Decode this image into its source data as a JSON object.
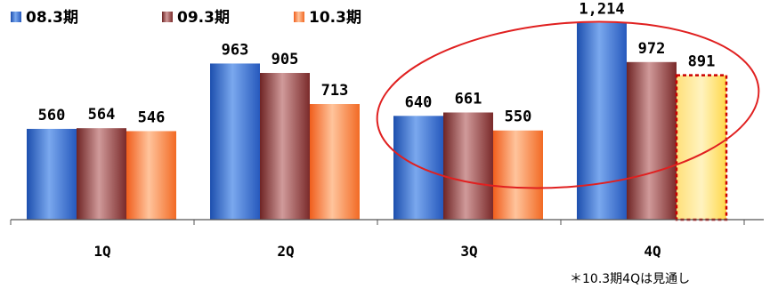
{
  "chart_data": {
    "type": "bar",
    "categories": [
      "1Q",
      "2Q",
      "3Q",
      "4Q"
    ],
    "series": [
      {
        "name": "08.3期",
        "values": [
          560,
          963,
          640,
          1214
        ],
        "labels": [
          "560",
          "963",
          "640",
          "1,214"
        ]
      },
      {
        "name": "09.3期",
        "values": [
          564,
          905,
          661,
          972
        ],
        "labels": [
          "564",
          "905",
          "661",
          "972"
        ]
      },
      {
        "name": "10.3期",
        "values": [
          546,
          713,
          550,
          891
        ],
        "labels": [
          "546",
          "713",
          "550",
          "891"
        ]
      }
    ],
    "forecast": {
      "series": "10.3期",
      "category": "4Q"
    },
    "highlight_categories": [
      "3Q",
      "4Q"
    ],
    "note": "＊10.3期4Qは見通し",
    "ylim": [
      0,
      1300
    ],
    "grid": false,
    "legend_position": "top-left",
    "colors": {
      "series": [
        "#2a64c8",
        "#7a2a2a",
        "#f26a24"
      ],
      "forecast_fill": "#ffd84a",
      "forecast_border": "#cc0000",
      "ellipse": "#e02020",
      "axis": "#555555"
    }
  }
}
